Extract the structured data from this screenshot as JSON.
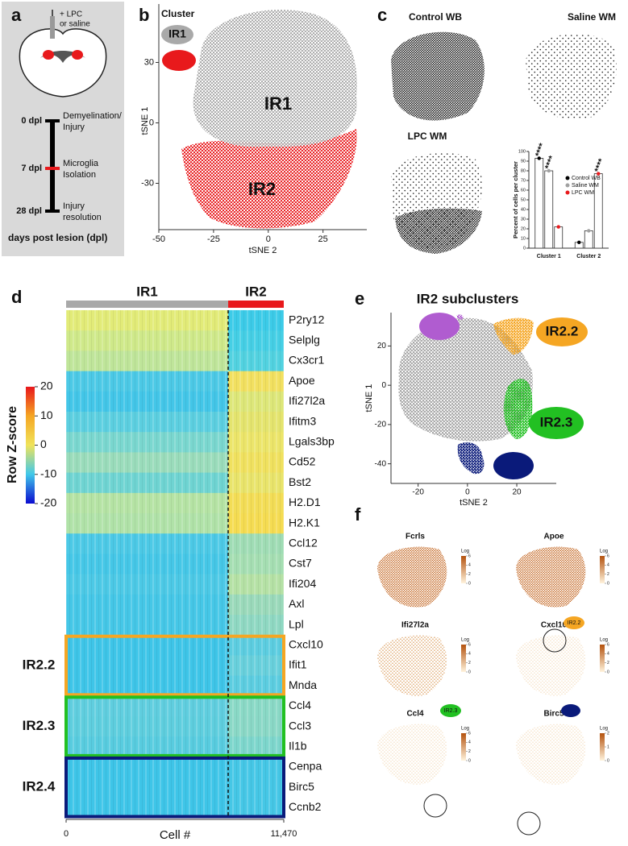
{
  "figure": {
    "panel_labels": [
      "a",
      "b",
      "c",
      "d",
      "e",
      "f"
    ],
    "a": {
      "injection": [
        "+ LPC",
        "or saline"
      ],
      "timeline": [
        {
          "day": "0 dpl",
          "event": [
            "Demyelination/",
            "Injury"
          ]
        },
        {
          "day": "7 dpl",
          "event": [
            "Microglia",
            "Isolation"
          ]
        },
        {
          "day": "28 dpl",
          "event": [
            "Injury",
            "resolution"
          ]
        }
      ],
      "footer": "days post lesion (dpl)"
    },
    "c_maps": [
      "Control WB",
      "Saline WM",
      "LPC WM"
    ],
    "f_maps": [
      {
        "gene": "Fcrls",
        "scale_label": "Log",
        "scale_ticks": [
          0,
          2,
          4,
          6
        ]
      },
      {
        "gene": "Apoe",
        "scale_label": "Log",
        "scale_ticks": [
          0,
          2,
          4,
          6
        ]
      },
      {
        "gene": "Ifi27l2a",
        "scale_label": "Log",
        "scale_ticks": [
          0,
          2,
          4,
          6
        ]
      },
      {
        "gene": "Cxcl10",
        "scale_label": "Log",
        "scale_ticks": [
          0,
          2,
          4,
          6
        ]
      },
      {
        "gene": "Ccl4",
        "scale_label": "Log",
        "scale_ticks": [
          0,
          2,
          4,
          6
        ]
      },
      {
        "gene": "Birc5",
        "scale_label": "Log",
        "scale_ticks": [
          0,
          1,
          2
        ]
      }
    ]
  },
  "chart_data": [
    {
      "type": "scatter",
      "title": "Cluster",
      "series": [
        {
          "name": "IR1",
          "color": "#a9a9a9"
        },
        {
          "name": "IR2",
          "color": "#e8191c"
        }
      ],
      "x_label": "tSNE 2",
      "y_label": "tSNE 1",
      "xlim": [
        -50,
        45
      ],
      "ylim": [
        -53,
        59
      ],
      "xticks": [
        -50,
        -25,
        0,
        25
      ],
      "yticks": [
        30,
        0,
        -30
      ]
    },
    {
      "type": "bar",
      "y_label": "Percent of cells per cluster",
      "categories": [
        "Cluster 1",
        "Cluster 2"
      ],
      "series": [
        {
          "name": "Control WB",
          "color": "#000000",
          "values": [
            93,
            6
          ],
          "significance": [
            "****",
            null
          ]
        },
        {
          "name": "Saline WM",
          "color": "#a0a0a0",
          "values": [
            80,
            18
          ],
          "significance": [
            "****",
            null
          ]
        },
        {
          "name": "LPC WM",
          "color": "#e8191c",
          "values": [
            22,
            77
          ],
          "significance": [
            null,
            "****"
          ]
        }
      ],
      "ylim": [
        0,
        100
      ],
      "yticks": [
        0,
        10,
        20,
        30,
        40,
        50,
        60,
        70,
        80,
        90,
        100
      ]
    },
    {
      "type": "heatmap",
      "clusters": [
        {
          "name": "IR1",
          "color": "#a9a9a9",
          "cells": 8540
        },
        {
          "name": "IR2",
          "color": "#e8191c",
          "cells": 2930
        }
      ],
      "x_label": "Cell #",
      "xlim": [
        0,
        11470
      ],
      "xticks": [
        0,
        {
          "value": 11470,
          "label": "11,470"
        }
      ],
      "colorbar_label": "Row Z-score",
      "clim": [
        -20,
        20
      ],
      "cticks": [
        20,
        10,
        0,
        -10,
        -20
      ],
      "colorscale": [
        "#0b0bd0",
        "#40c8ea",
        "#f0e35a",
        "#f5a623",
        "#e8161b"
      ],
      "gene_groups": [
        {
          "label": null,
          "color": null,
          "genes": [
            {
              "name": "P2ry12",
              "colors": [
                "#e2eb78",
                "#3ccbe8"
              ]
            },
            {
              "name": "Selplg",
              "colors": [
                "#cfe98a",
                "#45cfe5"
              ]
            },
            {
              "name": "Cx3cr1",
              "colors": [
                "#bfe59a",
                "#52d2e0"
              ]
            },
            {
              "name": "Apoe",
              "colors": [
                "#4cc9e6",
                "#f2e060"
              ]
            },
            {
              "name": "Ifi27l2a",
              "colors": [
                "#43c6e8",
                "#dde779"
              ]
            },
            {
              "name": "Ifitm3",
              "colors": [
                "#5ccfe0",
                "#e4e46e"
              ]
            },
            {
              "name": "Lgals3bp",
              "colors": [
                "#7ad7cf",
                "#ece56a"
              ]
            },
            {
              "name": "Cd52",
              "colors": [
                "#9adcbb",
                "#f0e15f"
              ]
            },
            {
              "name": "Bst2",
              "colors": [
                "#6fd4d2",
                "#e9e46b"
              ]
            },
            {
              "name": "H2.D1",
              "colors": [
                "#b5e3a4",
                "#f3dd56"
              ]
            },
            {
              "name": "H2.K1",
              "colors": [
                "#b0e2a8",
                "#f5dc52"
              ]
            },
            {
              "name": "Ccl12",
              "colors": [
                "#4cc9e6",
                "#9fdcb4"
              ]
            },
            {
              "name": "Cst7",
              "colors": [
                "#45c7e7",
                "#a5deb2"
              ]
            },
            {
              "name": "Ifi204",
              "colors": [
                "#4cc9e6",
                "#b5e1a5"
              ]
            },
            {
              "name": "Axl",
              "colors": [
                "#45c7e7",
                "#9ad9ba"
              ]
            },
            {
              "name": "Lpl",
              "colors": [
                "#45c7e7",
                "#8fd8c2"
              ]
            }
          ]
        },
        {
          "label": "IR2.2",
          "color": "#f5a623",
          "genes": [
            {
              "name": "Cxcl10",
              "colors": [
                "#3ec5e8",
                "#5ccde0"
              ]
            },
            {
              "name": "Ifit1",
              "colors": [
                "#3ec5e8",
                "#68d0dc"
              ]
            },
            {
              "name": "Mnda",
              "colors": [
                "#3ec5e8",
                "#5ccde0"
              ]
            }
          ]
        },
        {
          "label": "IR2.3",
          "color": "#22c022",
          "genes": [
            {
              "name": "Ccl4",
              "colors": [
                "#60cedf",
                "#8ad9c6"
              ]
            },
            {
              "name": "Ccl3",
              "colors": [
                "#5ecede",
                "#8ad8c6"
              ]
            },
            {
              "name": "Il1b",
              "colors": [
                "#58ccdf",
                "#7dd6cc"
              ]
            }
          ]
        },
        {
          "label": "IR2.4",
          "color": "#0a1a7a",
          "genes": [
            {
              "name": "Cenpa",
              "colors": [
                "#3ec5e8",
                "#45c7e6"
              ]
            },
            {
              "name": "Birc5",
              "colors": [
                "#3ec5e8",
                "#45c7e6"
              ]
            },
            {
              "name": "Ccnb2",
              "colors": [
                "#3ec5e8",
                "#45c7e6"
              ]
            }
          ]
        }
      ]
    },
    {
      "type": "scatter",
      "title": "IR2 subclusters",
      "series": [
        {
          "name": null,
          "color": "#b05cd0"
        },
        {
          "name": "IR2.2",
          "color": "#f5a623"
        },
        {
          "name": "IR2.3",
          "color": "#22c022"
        },
        {
          "name": null,
          "color": "#0a1a7a"
        }
      ],
      "x_label": "tSNE 2",
      "y_label": "tSNE 1",
      "xlim": [
        -31,
        36
      ],
      "ylim": [
        -50,
        37
      ],
      "xticks": [
        -20,
        0,
        20
      ],
      "yticks": [
        20,
        0,
        -20,
        -40
      ]
    }
  ]
}
